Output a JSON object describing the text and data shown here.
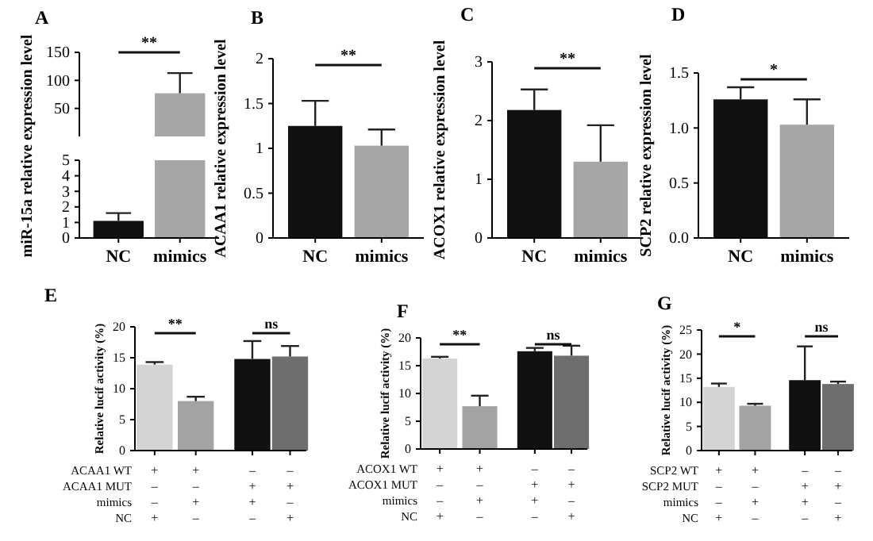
{
  "chart_data": [
    {
      "type": "bar",
      "title": "A",
      "categories": [
        null
      ],
      "values": [
        77
      ],
      "errors": [
        36
      ],
      "colors": [
        "#a6a6a6"
      ],
      "ylim": [
        0,
        150
      ],
      "yticks": [
        50,
        100,
        150
      ],
      "tick_labels": "y",
      "annotations": [
        "**"
      ]
    },
    {
      "type": "bar",
      "ylabel": "miR-15a relative expression level",
      "categories": [
        "NC",
        "mimics"
      ],
      "values": [
        1.1,
        5
      ],
      "errors": [
        0.5,
        null
      ],
      "colors": [
        "#111111",
        "#a6a6a6"
      ],
      "ylim": [
        0,
        5
      ],
      "yticks": [
        0,
        1,
        2,
        3,
        4,
        5
      ]
    },
    {
      "type": "bar",
      "title": "B",
      "ylabel": "ACAA1 relative expression level",
      "categories": [
        "NC",
        "mimics"
      ],
      "values": [
        1.25,
        1.03
      ],
      "errors": [
        0.28,
        0.18
      ],
      "colors": [
        "#111111",
        "#a6a6a6"
      ],
      "ylim": [
        0,
        2
      ],
      "yticks": [
        0,
        0.5,
        1,
        1.5,
        2
      ],
      "annotations": [
        "**"
      ]
    },
    {
      "type": "bar",
      "title": "C",
      "ylabel": "ACOX1 relative expression level",
      "categories": [
        "NC",
        "mimics"
      ],
      "values": [
        2.18,
        1.3
      ],
      "errors": [
        0.35,
        0.62
      ],
      "colors": [
        "#111111",
        "#a6a6a6"
      ],
      "ylim": [
        0,
        3
      ],
      "yticks": [
        0,
        1,
        2,
        3
      ],
      "annotations": [
        "**"
      ]
    },
    {
      "type": "bar",
      "title": "D",
      "ylabel": "SCP2 relative expression level",
      "categories": [
        "NC",
        "mimics"
      ],
      "values": [
        1.26,
        1.03
      ],
      "errors": [
        0.11,
        0.23
      ],
      "colors": [
        "#111111",
        "#a6a6a6"
      ],
      "ylim": [
        0,
        1.5
      ],
      "yticks": [
        {
          "value": 0,
          "label": "0.0"
        },
        {
          "value": 0.5,
          "label": "0.5"
        },
        {
          "value": 1,
          "label": "1.0"
        },
        {
          "value": 1.5,
          "label": "1.5"
        }
      ],
      "annotations": [
        "*"
      ]
    },
    {
      "type": "bar",
      "title": "E",
      "ylabel": "Relative lucif activity (%)",
      "categories": [
        "+\n–\n–\n+",
        "+\n–\n+\n–",
        "–\n+\n+\n–",
        "–\n+\n–\n+"
      ],
      "values": [
        13.9,
        8.0,
        14.8,
        15.2
      ],
      "errors": [
        0.4,
        0.7,
        2.9,
        1.7
      ],
      "colors": [
        "#d4d4d4",
        "#a3a3a3",
        "#111111",
        "#6e6e6e"
      ],
      "ylim": [
        0,
        20
      ],
      "yticks": [
        0,
        5,
        10,
        15,
        20
      ],
      "annotations": [
        "**",
        "ns",
        "ACAA1 WT",
        "ACAA1 MUT",
        "mimics",
        "NC"
      ]
    },
    {
      "type": "bar",
      "title": "F",
      "ylabel": "Relative lucif activity (%)",
      "categories": [
        "+\n–\n–\n+",
        "+\n–\n+\n–",
        "–\n+\n+\n–",
        "–\n+\n–\n+"
      ],
      "values": [
        16.3,
        7.7,
        17.6,
        16.8
      ],
      "errors": [
        0.3,
        1.9,
        0.6,
        1.8
      ],
      "colors": [
        "#d4d4d4",
        "#a3a3a3",
        "#111111",
        "#6e6e6e"
      ],
      "ylim": [
        0,
        20
      ],
      "yticks": [
        0,
        5,
        10,
        15,
        20
      ],
      "annotations": [
        "**",
        "ns",
        "ACOX1 WT",
        "ACOX1 MUT",
        "mimics",
        "NC"
      ]
    },
    {
      "type": "bar",
      "title": "G",
      "ylabel": "Relative lucif activity (%)",
      "categories": [
        "+\n–\n–\n+",
        "+\n–\n+\n–",
        "–\n+\n+\n–",
        "–\n+\n–\n+"
      ],
      "values": [
        13.2,
        9.3,
        14.6,
        13.8
      ],
      "errors": [
        0.7,
        0.4,
        7.0,
        0.5
      ],
      "colors": [
        "#d4d4d4",
        "#a3a3a3",
        "#111111",
        "#6e6e6e"
      ],
      "ylim": [
        0,
        25
      ],
      "yticks": [
        0,
        5,
        10,
        15,
        20,
        25
      ],
      "annotations": [
        "*",
        "ns",
        "SCP2 WT",
        "SCP2 MUT",
        "mimics",
        "NC"
      ]
    }
  ]
}
